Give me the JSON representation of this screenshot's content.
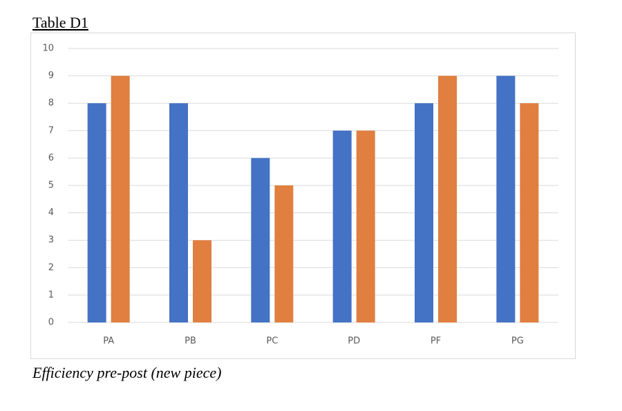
{
  "chart_data": {
    "type": "bar",
    "title": "Table D1",
    "caption": "Efficiency pre-post (new piece)",
    "categories": [
      "PA",
      "PB",
      "PC",
      "PD",
      "PF",
      "PG"
    ],
    "series": [
      {
        "color": "#4472c4",
        "values": [
          8,
          8,
          6,
          7,
          8,
          9
        ]
      },
      {
        "color": "#e07f40",
        "values": [
          9,
          3,
          5,
          7,
          9,
          8
        ]
      }
    ],
    "ylim": [
      0,
      10
    ],
    "yticks": [
      0,
      1,
      2,
      3,
      4,
      5,
      6,
      7,
      8,
      9,
      10
    ],
    "grid": true
  }
}
